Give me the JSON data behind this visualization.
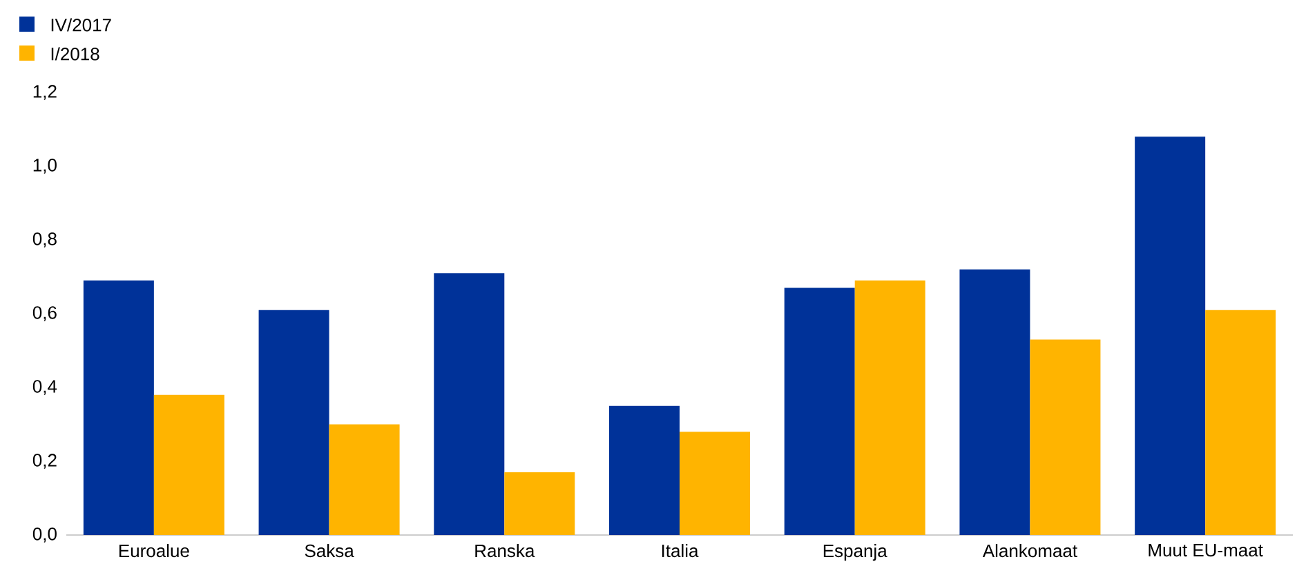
{
  "chart_data": {
    "type": "bar",
    "categories": [
      "Euroalue",
      "Saksa",
      "Ranska",
      "Italia",
      "Espanja",
      "Alankomaat",
      "Muut EU-maat"
    ],
    "series": [
      {
        "name": "IV/2017",
        "color": "#003299",
        "values": [
          0.69,
          0.61,
          0.71,
          0.35,
          0.67,
          0.72,
          1.08
        ]
      },
      {
        "name": "I/2018",
        "color": "#ffb400",
        "values": [
          0.38,
          0.3,
          0.17,
          0.28,
          0.69,
          0.53,
          0.61
        ]
      }
    ],
    "ylim": [
      0,
      1.2
    ],
    "yticks": [
      {
        "value": 0,
        "label": "0,0"
      },
      {
        "value": 0.2,
        "label": "0,2"
      },
      {
        "value": 0.4,
        "label": "0,4"
      },
      {
        "value": 0.6,
        "label": "0,6"
      },
      {
        "value": 0.8,
        "label": "0,8"
      },
      {
        "value": 1.0,
        "label": "1,0"
      },
      {
        "value": 1.2,
        "label": "1,2"
      }
    ],
    "legend": "top left"
  }
}
